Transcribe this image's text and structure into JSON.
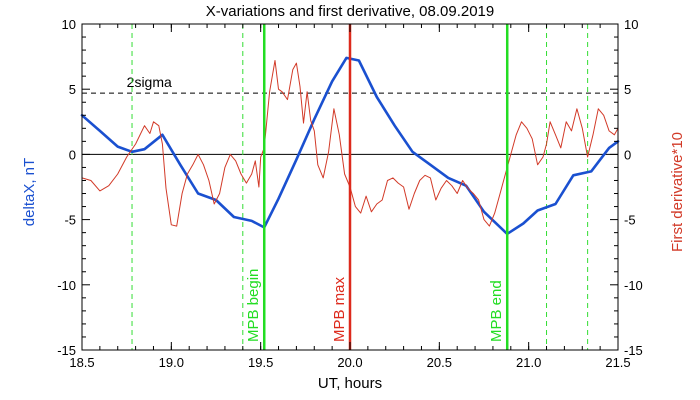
{
  "chart_data": {
    "type": "line",
    "title": "X-variations and first derivative, 08.09.2019",
    "xlabel": "UT, hours",
    "ylabel_left": "deltaX, nT",
    "ylabel_right": "First derivative*10",
    "xlim": [
      18.5,
      21.5
    ],
    "ylim": [
      -15,
      10
    ],
    "x_ticks": [
      "18.5",
      "19.0",
      "19.5",
      "20.0",
      "20.5",
      "21.0",
      "21.5"
    ],
    "y_ticks": [
      "10",
      "5",
      "0",
      "-5",
      "-10",
      "-15"
    ],
    "colors": {
      "deltaX": "#1a50d0",
      "derivative": "#d23a28",
      "mpb_edges": "#22dd22",
      "mpb_max": "#dd2a1c",
      "dashed": "#33dd33"
    },
    "sigma": {
      "label": "2sigma",
      "value": 4.7
    },
    "markers": [
      {
        "label": "MPB begin",
        "x": 19.52,
        "color": "#22dd22"
      },
      {
        "label": "MPB max",
        "x": 20.0,
        "color": "#dd2a1c"
      },
      {
        "label": "MPB end",
        "x": 20.88,
        "color": "#22dd22"
      }
    ],
    "dashed_lines_x": [
      18.78,
      19.4,
      20.0,
      21.1,
      21.33
    ],
    "series": [
      {
        "name": "deltaX",
        "axis": "left",
        "x": [
          18.5,
          18.6,
          18.7,
          18.78,
          18.85,
          18.95,
          19.05,
          19.15,
          19.25,
          19.35,
          19.45,
          19.52,
          19.6,
          19.7,
          19.8,
          19.9,
          19.98,
          20.05,
          20.15,
          20.25,
          20.35,
          20.45,
          20.55,
          20.65,
          20.75,
          20.88,
          20.97,
          21.05,
          21.15,
          21.25,
          21.35,
          21.45,
          21.5
        ],
        "y": [
          3.0,
          1.8,
          0.6,
          0.2,
          0.4,
          1.5,
          -0.8,
          -3.0,
          -3.5,
          -4.8,
          -5.1,
          -5.6,
          -3.4,
          -0.4,
          2.7,
          5.6,
          7.4,
          7.2,
          4.4,
          2.2,
          0.2,
          -0.8,
          -1.8,
          -2.4,
          -4.4,
          -6.1,
          -5.3,
          -4.3,
          -3.8,
          -1.6,
          -1.3,
          0.5,
          1.0
        ]
      },
      {
        "name": "First derivative*10",
        "axis": "right",
        "x": [
          18.5,
          18.55,
          18.6,
          18.65,
          18.7,
          18.75,
          18.8,
          18.85,
          18.88,
          18.9,
          18.93,
          18.95,
          18.97,
          19.0,
          19.03,
          19.06,
          19.09,
          19.12,
          19.15,
          19.18,
          19.21,
          19.24,
          19.27,
          19.3,
          19.33,
          19.36,
          19.39,
          19.42,
          19.45,
          19.47,
          19.49,
          19.5,
          19.52,
          19.55,
          19.58,
          19.6,
          19.62,
          19.65,
          19.68,
          19.7,
          19.72,
          19.74,
          19.76,
          19.78,
          19.8,
          19.82,
          19.85,
          19.88,
          19.91,
          19.94,
          19.97,
          20.0,
          20.03,
          20.06,
          20.09,
          20.12,
          20.15,
          20.18,
          20.21,
          20.24,
          20.27,
          20.3,
          20.33,
          20.36,
          20.39,
          20.42,
          20.45,
          20.48,
          20.51,
          20.54,
          20.57,
          20.6,
          20.63,
          20.66,
          20.69,
          20.72,
          20.75,
          20.78,
          20.81,
          20.84,
          20.87,
          20.9,
          20.93,
          20.96,
          20.99,
          21.02,
          21.05,
          21.08,
          21.1,
          21.12,
          21.15,
          21.18,
          21.21,
          21.24,
          21.27,
          21.3,
          21.33,
          21.36,
          21.39,
          21.42,
          21.45,
          21.48,
          21.5
        ],
        "y": [
          -1.8,
          -2.0,
          -2.8,
          -2.4,
          -1.5,
          -0.2,
          0.8,
          2.2,
          1.6,
          2.5,
          2.2,
          0.8,
          -2.6,
          -5.4,
          -5.5,
          -3.0,
          -1.5,
          -0.8,
          0.0,
          -0.8,
          -2.0,
          -3.8,
          -3.0,
          -1.0,
          0.0,
          -0.5,
          -1.5,
          -2.2,
          -1.5,
          -0.5,
          -2.5,
          -0.2,
          0.5,
          4.8,
          7.2,
          5.0,
          4.8,
          4.2,
          6.5,
          7.0,
          5.2,
          2.4,
          4.8,
          2.6,
          1.8,
          -0.8,
          -1.8,
          0.2,
          3.5,
          1.5,
          -1.5,
          -2.5,
          -4.0,
          -4.5,
          -3.2,
          -4.4,
          -3.8,
          -3.5,
          -2.0,
          -1.8,
          -2.2,
          -2.5,
          -4.2,
          -3.0,
          -2.0,
          -1.6,
          -1.8,
          -3.5,
          -2.6,
          -2.0,
          -2.4,
          -3.0,
          -2.0,
          -2.6,
          -3.0,
          -3.5,
          -5.0,
          -5.5,
          -4.5,
          -3.0,
          -1.5,
          0.0,
          1.5,
          2.5,
          2.0,
          1.2,
          -0.8,
          -0.2,
          0.8,
          2.5,
          1.5,
          0.5,
          2.5,
          1.8,
          3.5,
          2.0,
          -0.2,
          1.5,
          3.5,
          3.0,
          1.8,
          1.5,
          2.0
        ]
      }
    ]
  }
}
